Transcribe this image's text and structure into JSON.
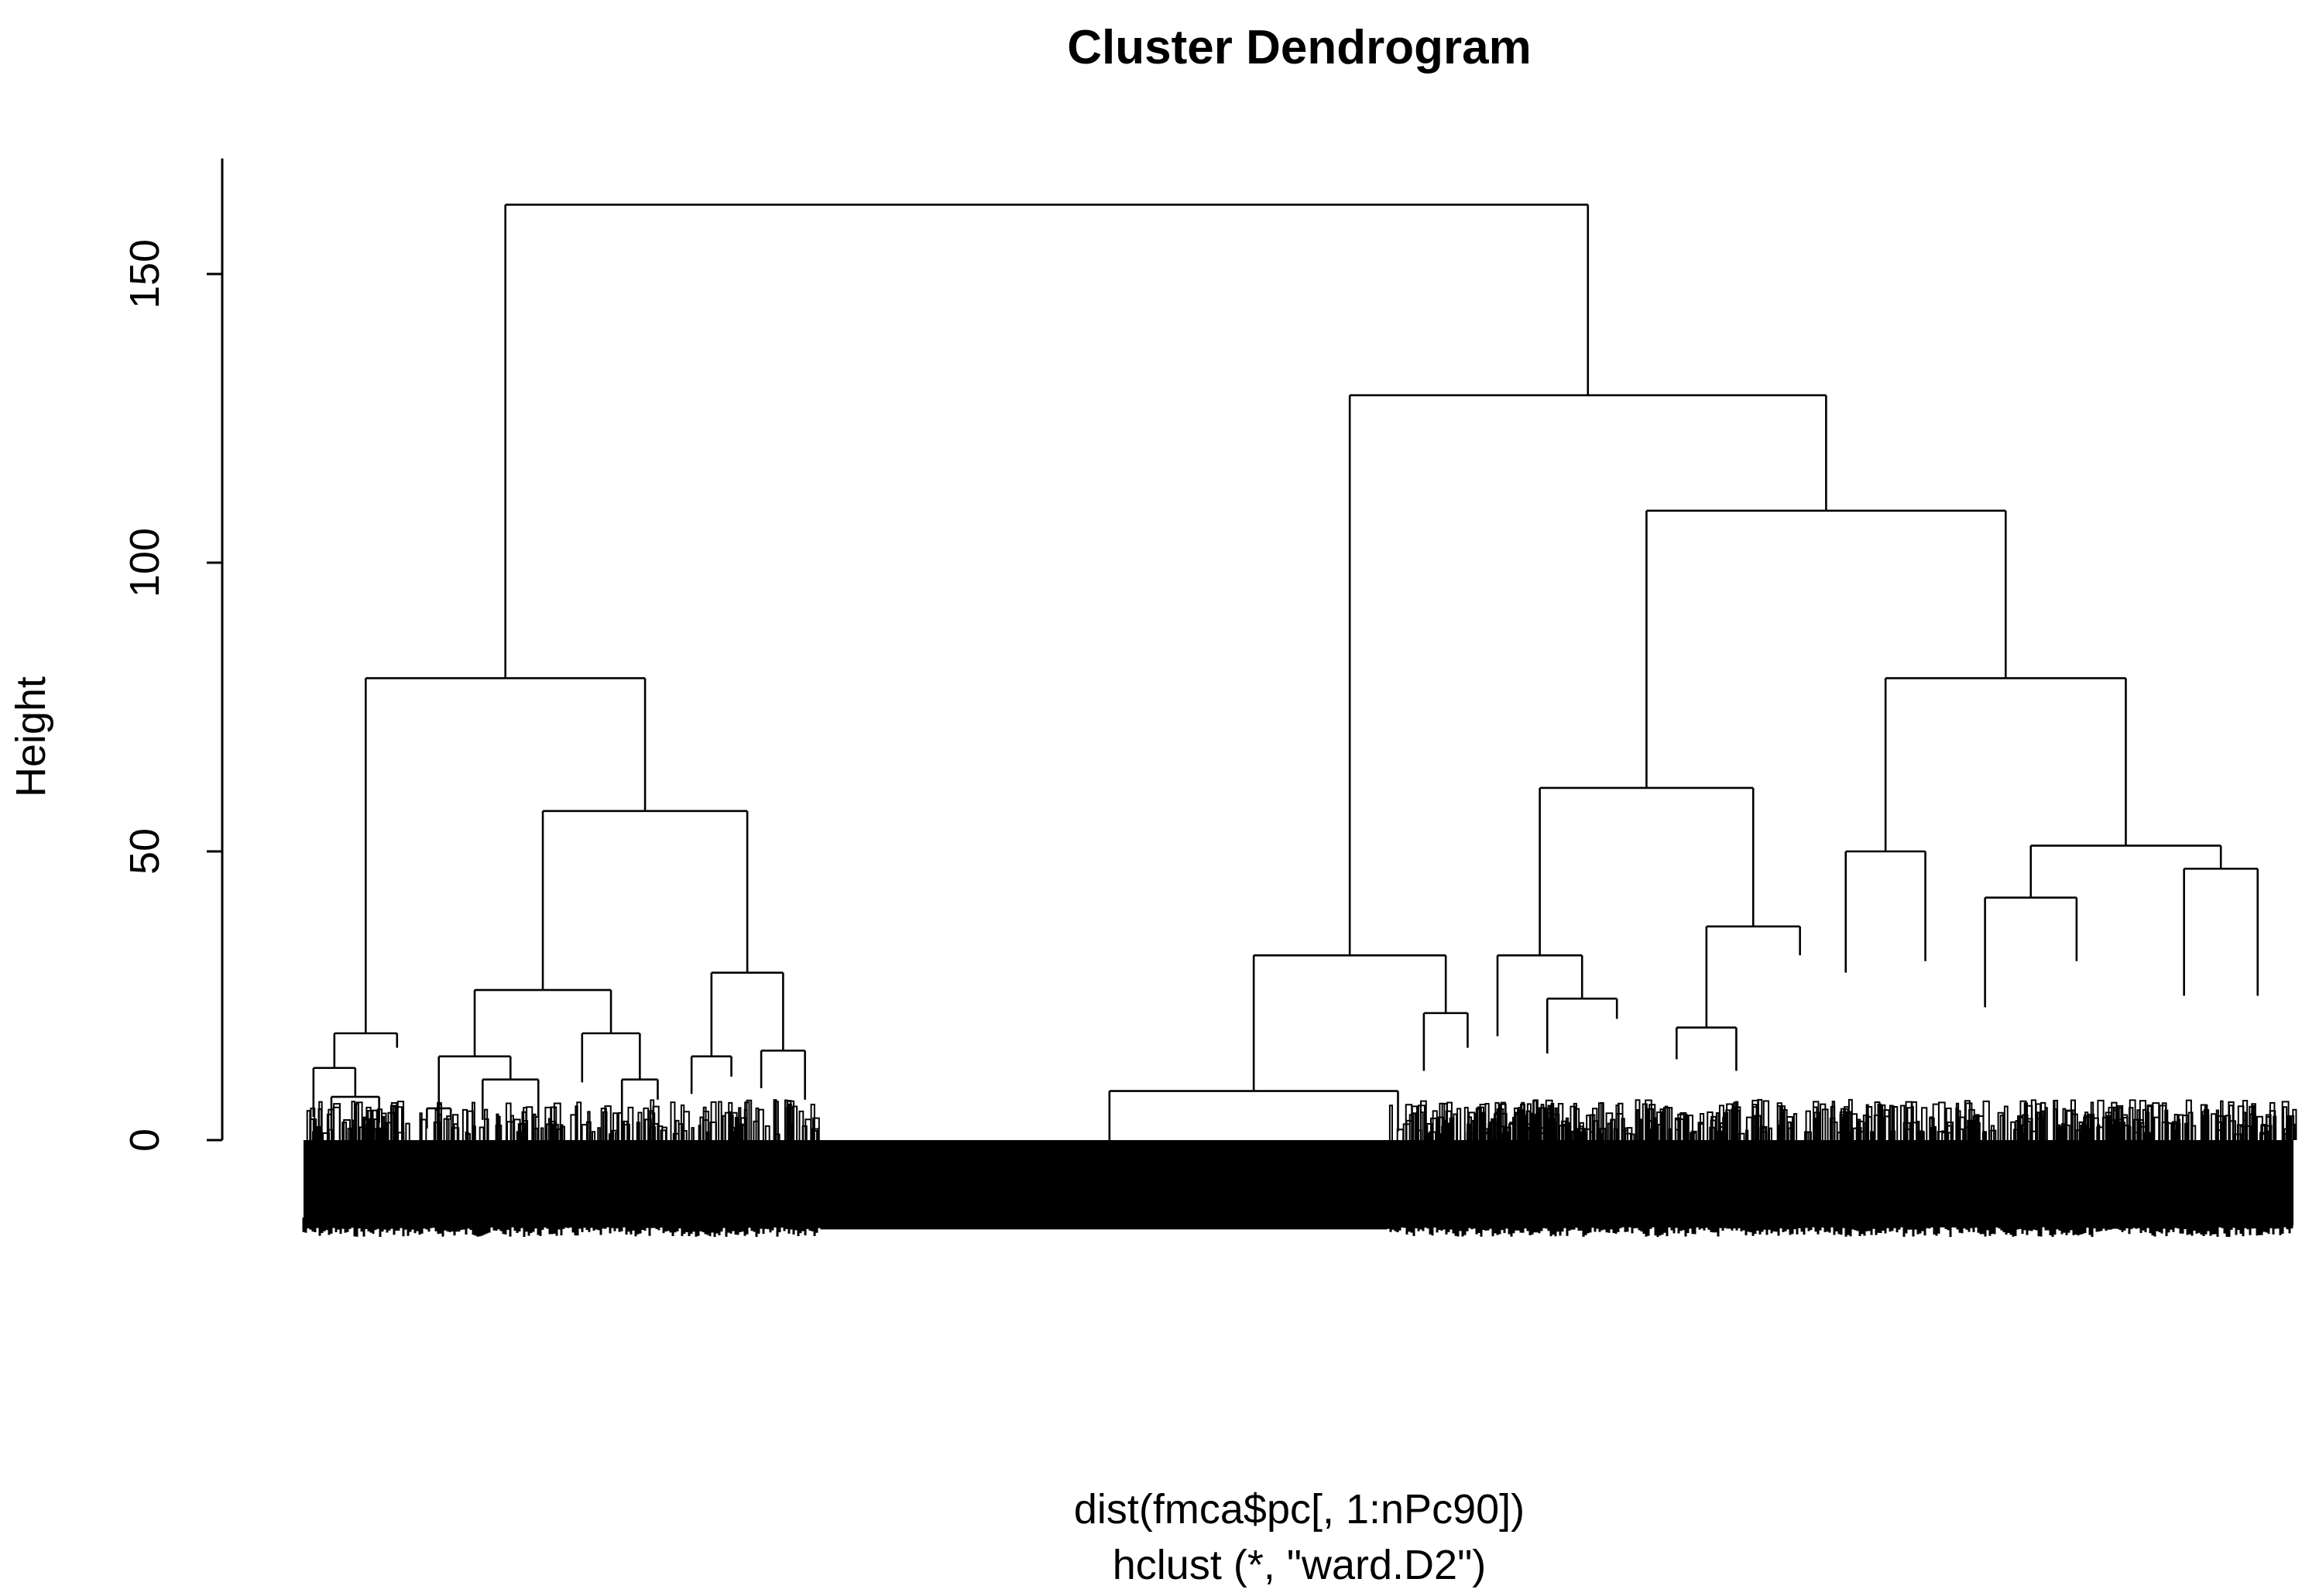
{
  "chart_data": {
    "type": "dendrogram",
    "title": "Cluster Dendrogram",
    "ylabel": "Height",
    "xlabel": "dist(fmca$pc[, 1:nPc90])",
    "sublabel": "hclust (*, \"ward.D2\")",
    "ylim": [
      0,
      170
    ],
    "yticks": [
      "0",
      "50",
      "100",
      "150"
    ],
    "xrange": [
      0,
      1000
    ],
    "grid": false,
    "legend": "none",
    "merges": [
      {
        "name": "root",
        "height": 162,
        "left": {
          "ref": "A"
        },
        "right": {
          "ref": "B"
        }
      },
      {
        "name": "A",
        "height": 80,
        "left": {
          "ref": "A1"
        },
        "right": {
          "ref": "A2"
        }
      },
      {
        "name": "A1",
        "height": 18.5,
        "left": {
          "ref": "A1a"
        },
        "right": {
          "pos": 47,
          "h": 16
        }
      },
      {
        "name": "A1a",
        "height": 12.5,
        "left": {
          "pos": 5,
          "h": 4
        },
        "right": {
          "ref": "A1b"
        }
      },
      {
        "name": "A1b",
        "height": 7.5,
        "left": {
          "pos": 14,
          "h": 2
        },
        "right": {
          "pos": 38,
          "h": 3
        }
      },
      {
        "name": "A2",
        "height": 57,
        "left": {
          "ref": "A2a"
        },
        "right": {
          "ref": "A2b"
        }
      },
      {
        "name": "A2a",
        "height": 26,
        "left": {
          "ref": "A2a1"
        },
        "right": {
          "ref": "A2a2"
        }
      },
      {
        "name": "A2a1",
        "height": 14.5,
        "left": {
          "ref": "A2a1x"
        },
        "right": {
          "ref": "A2a1y"
        }
      },
      {
        "name": "A2a1x",
        "height": 5.5,
        "left": {
          "pos": 62,
          "h": 2
        },
        "right": {
          "pos": 74,
          "h": 3.5
        }
      },
      {
        "name": "A2a1y",
        "height": 10.5,
        "left": {
          "pos": 90,
          "h": 3.5
        },
        "right": {
          "pos": 118,
          "h": 4
        }
      },
      {
        "name": "A2a2",
        "height": 18.5,
        "left": {
          "pos": 140,
          "h": 10
        },
        "right": {
          "ref": "A2a2y"
        }
      },
      {
        "name": "A2a2y",
        "height": 10.5,
        "left": {
          "pos": 160,
          "h": 3
        },
        "right": {
          "pos": 178,
          "h": 7
        }
      },
      {
        "name": "A2b",
        "height": 29,
        "left": {
          "ref": "A2b1"
        },
        "right": {
          "ref": "A2b2"
        }
      },
      {
        "name": "A2b1",
        "height": 14.5,
        "left": {
          "pos": 195,
          "h": 8
        },
        "right": {
          "pos": 215,
          "h": 11
        }
      },
      {
        "name": "A2b2",
        "height": 15.5,
        "left": {
          "pos": 230,
          "h": 9
        },
        "right": {
          "pos": 252,
          "h": 7
        }
      },
      {
        "name": "B",
        "height": 129,
        "left": {
          "ref": "B1"
        },
        "right": {
          "ref": "B2"
        }
      },
      {
        "name": "B1",
        "height": 32,
        "left": {
          "ref": "B1a"
        },
        "right": {
          "ref": "B1b"
        }
      },
      {
        "name": "B1a",
        "height": 8.5,
        "left": {
          "pos": 405,
          "h": 0
        },
        "right": {
          "pos": 550,
          "h": 1.5
        }
      },
      {
        "name": "B1b",
        "height": 22,
        "left": {
          "pos": 563,
          "h": 12
        },
        "right": {
          "pos": 585,
          "h": 16
        }
      },
      {
        "name": "B2",
        "height": 109,
        "left": {
          "ref": "B2a"
        },
        "right": {
          "ref": "B2b"
        }
      },
      {
        "name": "B2a",
        "height": 61,
        "left": {
          "ref": "B2a1"
        },
        "right": {
          "ref": "B2a2"
        }
      },
      {
        "name": "B2a1",
        "height": 32,
        "left": {
          "pos": 600,
          "h": 18
        },
        "right": {
          "ref": "B2a1y"
        }
      },
      {
        "name": "B2a1y",
        "height": 24.5,
        "left": {
          "pos": 625,
          "h": 15
        },
        "right": {
          "pos": 660,
          "h": 21
        }
      },
      {
        "name": "B2a2",
        "height": 37,
        "left": {
          "ref": "B2a2x"
        },
        "right": {
          "pos": 752,
          "h": 32
        }
      },
      {
        "name": "B2a2x",
        "height": 19.5,
        "left": {
          "pos": 690,
          "h": 14
        },
        "right": {
          "pos": 720,
          "h": 12
        }
      },
      {
        "name": "B2b",
        "height": 80,
        "left": {
          "ref": "B2b1"
        },
        "right": {
          "ref": "B2b2"
        }
      },
      {
        "name": "B2b1",
        "height": 50,
        "left": {
          "pos": 775,
          "h": 29
        },
        "right": {
          "pos": 815,
          "h": 31
        }
      },
      {
        "name": "B2b2",
        "height": 51,
        "left": {
          "ref": "B2b2a"
        },
        "right": {
          "ref": "B2b2b"
        }
      },
      {
        "name": "B2b2a",
        "height": 42,
        "left": {
          "pos": 845,
          "h": 23
        },
        "right": {
          "pos": 891,
          "h": 31
        }
      },
      {
        "name": "B2b2b",
        "height": 47,
        "left": {
          "pos": 945,
          "h": 25
        },
        "right": {
          "pos": 982,
          "h": 25
        }
      }
    ]
  }
}
